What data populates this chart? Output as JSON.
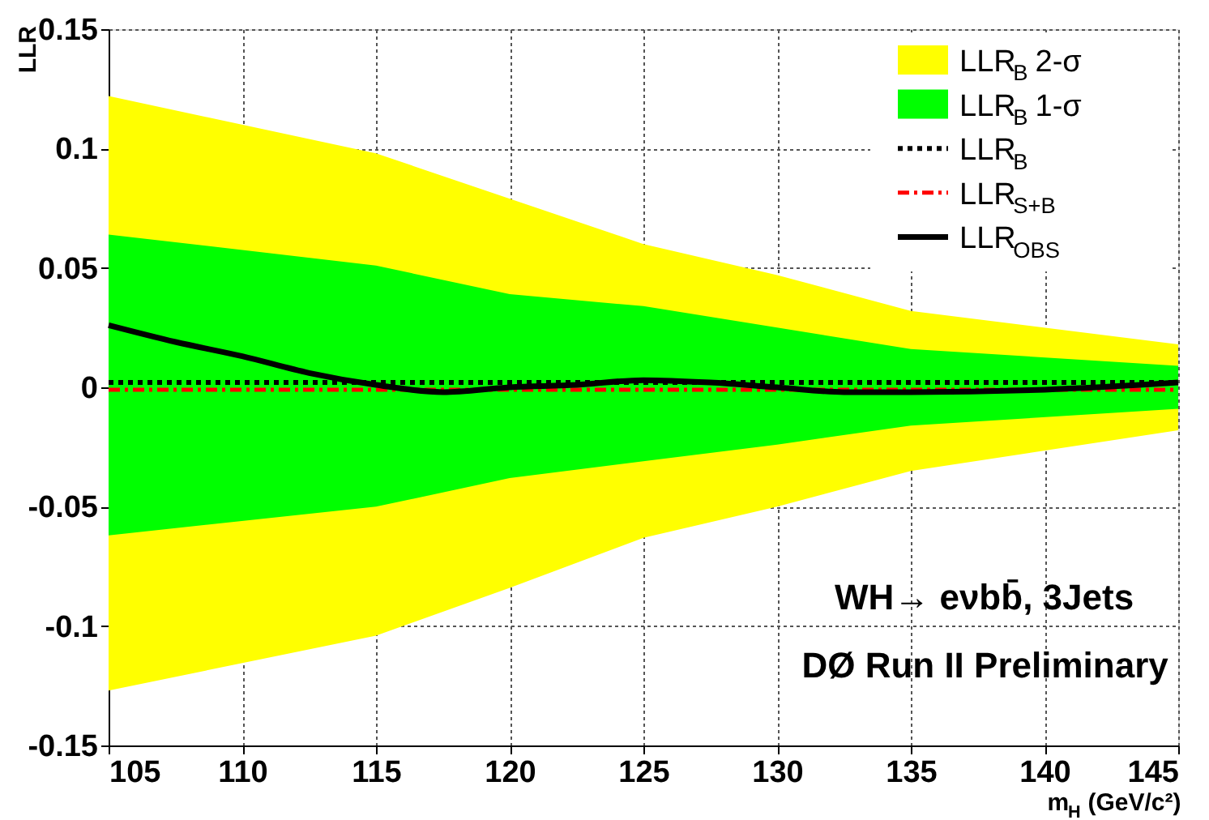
{
  "chart_data": {
    "type": "line",
    "xlabel": "m$_{H}$ (GeV/c²)",
    "ylabel": "LLR",
    "xlim": [
      105,
      145
    ],
    "ylim": [
      -0.15,
      0.15
    ],
    "xticks": [
      105,
      110,
      115,
      120,
      125,
      130,
      135,
      140,
      145
    ],
    "yticks": [
      -0.15,
      -0.1,
      -0.05,
      0,
      0.05,
      0.1,
      0.15
    ],
    "grid": true,
    "legend": "top right",
    "annotations": [
      "WH→ eνbb̄, 3Jets",
      "DØ Run II Preliminary"
    ],
    "series": [
      {
        "name": "LLR$_{B}$ 2-σ",
        "type": "line",
        "color": "#ffff00",
        "x": [
          105,
          115,
          120,
          125,
          130,
          135,
          145
        ],
        "values": [
          null,
          null,
          null,
          null,
          null,
          null,
          null
        ],
        "lower": [
          -0.127,
          -0.104,
          -0.084,
          -0.063,
          -0.05,
          -0.035,
          -0.018
        ],
        "upper": [
          0.122,
          0.098,
          0.079,
          0.06,
          0.047,
          0.032,
          0.018
        ]
      },
      {
        "name": "LLR$_{B}$ 1-σ",
        "type": "line",
        "color": "#00ff00",
        "x": [
          105,
          115,
          120,
          125,
          130,
          135,
          145
        ],
        "values": [
          null,
          null,
          null,
          null,
          null,
          null,
          null
        ],
        "lower": [
          -0.062,
          -0.05,
          -0.038,
          -0.031,
          -0.024,
          -0.016,
          -0.009
        ],
        "upper": [
          0.064,
          0.051,
          0.039,
          0.034,
          0.025,
          0.016,
          0.009
        ]
      },
      {
        "name": "LLR$_{B}$",
        "type": "line",
        "line_style": "dotted",
        "color": "#000000",
        "x": [
          105,
          145
        ],
        "values": [
          0.002,
          0.002
        ]
      },
      {
        "name": "LLR$_{S+B}$",
        "type": "line",
        "line_style": "dashed",
        "color": "#ff0000",
        "x": [
          105,
          145
        ],
        "values": [
          -0.001,
          -0.001
        ]
      },
      {
        "name": "LLR$_{OBS}$",
        "type": "line",
        "line_style": "solid",
        "color": "#000000",
        "x": [
          105,
          107.5,
          110,
          112.5,
          115,
          117.5,
          120,
          122.5,
          125,
          127.5,
          130,
          132.5,
          135,
          140,
          145
        ],
        "values": [
          0.026,
          0.019,
          0.013,
          0.006,
          0.001,
          -0.002,
          0.0,
          0.001,
          0.003,
          0.002,
          0.0,
          -0.002,
          -0.002,
          -0.001,
          0.002
        ]
      }
    ]
  }
}
